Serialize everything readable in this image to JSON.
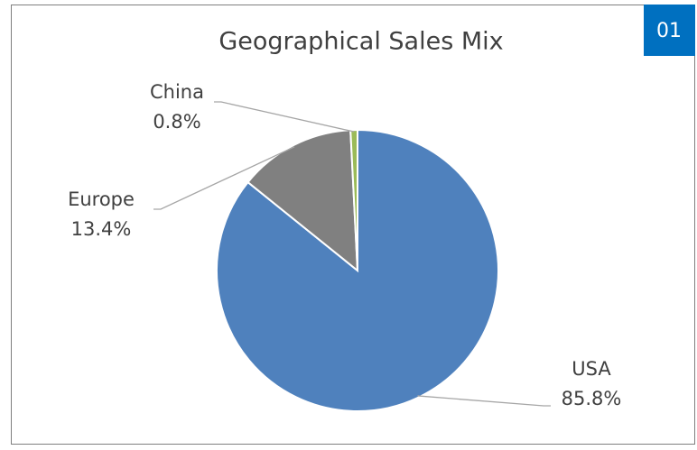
{
  "badge": "01",
  "chart_data": {
    "type": "pie",
    "title": "Geographical Sales Mix",
    "categories": [
      "USA",
      "Europe",
      "China"
    ],
    "values": [
      85.8,
      13.4,
      0.8
    ],
    "value_labels": [
      "85.8%",
      "13.4%",
      "0.8%"
    ],
    "colors": [
      "#4f81bd",
      "#808080",
      "#9bbb59"
    ],
    "start_angle": 0,
    "direction": "clockwise"
  }
}
